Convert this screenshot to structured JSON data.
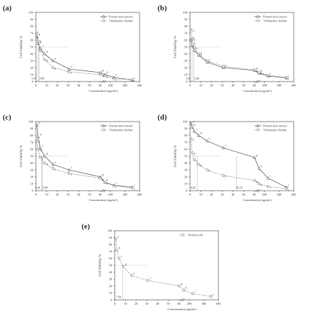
{
  "chart_data": [
    {
      "type": "line",
      "panel_label": "(a)",
      "ylabel": "Cell Viability %",
      "xlabel": "Concentration (µg/mL)",
      "xticks": [
        "0",
        "10",
        "20",
        "30",
        "40",
        "50",
        "60",
        "200",
        "400",
        "600"
      ],
      "yticks": [
        "0",
        "10",
        "20",
        "30",
        "40",
        "50",
        "60",
        "70",
        "80",
        "90",
        "100"
      ],
      "ylim": [
        0,
        100
      ],
      "ic50": [
        "1.93",
        "2.89"
      ],
      "series": [
        {
          "name": "Peanut skin extract",
          "marker": "triangle",
          "dash": false,
          "x": [
            1,
            2,
            4,
            8,
            16,
            31,
            62,
            125,
            250,
            500
          ],
          "y": [
            65,
            55,
            48,
            40,
            30,
            18,
            13,
            10,
            6,
            2
          ],
          "labels": [
            "a",
            "b",
            "c",
            "d",
            "e",
            "f",
            "g",
            "h",
            "i",
            "j"
          ]
        },
        {
          "name": "Vinblastine Sulfate",
          "marker": "circle",
          "dash": true,
          "x": [
            1,
            2,
            4,
            8,
            16,
            31,
            62,
            125,
            250,
            500
          ],
          "y": [
            70,
            58,
            45,
            32,
            20,
            14,
            10,
            8,
            4,
            3
          ],
          "labels": [
            "a",
            "b",
            "c",
            "d",
            "e",
            "f",
            "g",
            "h",
            "i",
            "j"
          ]
        }
      ]
    },
    {
      "type": "line",
      "panel_label": "(b)",
      "ylabel": "Cell Viability %",
      "xlabel": "Concentration (µg/mL)",
      "xticks": [
        "0",
        "10",
        "20",
        "30",
        "40",
        "50",
        "60",
        "200",
        "400",
        "600"
      ],
      "yticks": [
        "0",
        "10",
        "20",
        "30",
        "40",
        "50",
        "60",
        "70",
        "80",
        "90",
        "100"
      ],
      "ylim": [
        0,
        100
      ],
      "ic50": [
        "1.92",
        "3.48"
      ],
      "series": [
        {
          "name": "Peanut skin extract",
          "marker": "triangle",
          "dash": false,
          "x": [
            1,
            2,
            4,
            8,
            16,
            31,
            62,
            125,
            250,
            500
          ],
          "y": [
            60,
            52,
            45,
            38,
            28,
            20,
            16,
            12,
            8,
            5
          ],
          "labels": [
            "a",
            "b",
            "c",
            "d",
            "e",
            "f",
            "g",
            "h",
            "i",
            "j"
          ]
        },
        {
          "name": "Vinblastine Sulfate",
          "marker": "circle",
          "dash": true,
          "x": [
            1,
            2,
            4,
            8,
            16,
            31,
            62,
            125,
            250,
            500
          ],
          "y": [
            75,
            62,
            50,
            40,
            30,
            22,
            17,
            13,
            9,
            6
          ],
          "labels": [
            "a",
            "b",
            "c",
            "d",
            "e",
            "f",
            "g",
            "h",
            "i",
            "j"
          ]
        }
      ]
    },
    {
      "type": "line",
      "panel_label": "(c)",
      "ylabel": "Cell Viability %",
      "xlabel": "Concentration (µg/mL)",
      "xticks": [
        "0",
        "10",
        "20",
        "30",
        "40",
        "50",
        "60",
        "200",
        "400",
        "600"
      ],
      "yticks": [
        "0",
        "10",
        "20",
        "30",
        "40",
        "50",
        "60",
        "70",
        "80",
        "90",
        "100"
      ],
      "ylim": [
        0,
        100
      ],
      "ic50": [
        "5.28",
        "5.89"
      ],
      "series": [
        {
          "name": "Peanut skin extract",
          "marker": "triangle",
          "dash": false,
          "x": [
            1,
            2,
            4,
            8,
            16,
            31,
            62,
            125,
            250,
            500
          ],
          "y": [
            95,
            78,
            62,
            50,
            38,
            30,
            20,
            12,
            8,
            5
          ],
          "labels": [
            "a",
            "b",
            "c",
            "d",
            "e",
            "f",
            "g",
            "h",
            "i",
            "j"
          ]
        },
        {
          "name": "Vinblastine Sulfate",
          "marker": "circle",
          "dash": true,
          "x": [
            1,
            2,
            4,
            8,
            16,
            31,
            62,
            125,
            250,
            500
          ],
          "y": [
            72,
            60,
            48,
            40,
            32,
            25,
            18,
            12,
            7,
            4
          ],
          "labels": [
            "a",
            "b",
            "c",
            "d",
            "e",
            "f",
            "g",
            "h",
            "i",
            "j"
          ]
        }
      ]
    },
    {
      "type": "line",
      "panel_label": "(d)",
      "ylabel": "Cell Viability %",
      "xlabel": "Concentration (µg/mL)",
      "xticks": [
        "0",
        "10",
        "20",
        "30",
        "40",
        "50",
        "60",
        "200",
        "400",
        "600"
      ],
      "yticks": [
        "0",
        "10",
        "20",
        "30",
        "40",
        "50",
        "60",
        "70",
        "80",
        "90",
        "100"
      ],
      "ylim": [
        0,
        100
      ],
      "ic50": [
        "6.62",
        "43.33"
      ],
      "series": [
        {
          "name": "Peanut skin extract",
          "marker": "triangle",
          "dash": false,
          "x": [
            1,
            2,
            4,
            8,
            16,
            31,
            62,
            125,
            250,
            500
          ],
          "y": [
            97,
            92,
            86,
            80,
            72,
            62,
            48,
            32,
            18,
            5
          ],
          "labels": [
            "a",
            "b",
            "c",
            "d",
            "e",
            "f",
            "g",
            "h",
            "i",
            "j"
          ]
        },
        {
          "name": "Vinblastine Sulfate",
          "marker": "circle",
          "dash": true,
          "x": [
            1,
            2,
            4,
            8,
            16,
            31,
            62,
            125,
            250,
            500
          ],
          "y": [
            75,
            55,
            45,
            38,
            30,
            22,
            15,
            10,
            6,
            3
          ],
          "labels": [
            "a",
            "b",
            "c",
            "d",
            "e",
            "f",
            "g",
            "h",
            "i",
            "j"
          ]
        }
      ]
    },
    {
      "type": "line",
      "panel_label": "(e)",
      "ylabel": "Cell Viability %",
      "xlabel": "Concentration (µg/mL)",
      "xticks": [
        "0",
        "10",
        "20",
        "30",
        "40",
        "50",
        "60",
        "200",
        "400",
        "600"
      ],
      "yticks": [
        "0",
        "10",
        "20",
        "30",
        "40",
        "50",
        "60",
        "70",
        "80",
        "90",
        "100"
      ],
      "ylim": [
        0,
        100
      ],
      "ic50": [
        "7.30"
      ],
      "series": [
        {
          "name": "Normal cell",
          "marker": "circle",
          "dash": true,
          "x": [
            1,
            2,
            4,
            8,
            16,
            31,
            62,
            125,
            250,
            500
          ],
          "y": [
            88,
            72,
            60,
            48,
            35,
            28,
            20,
            14,
            9,
            5
          ],
          "labels": [
            "a",
            "b",
            "c",
            "d",
            "e",
            "f",
            "g",
            "h",
            "i",
            "j"
          ]
        }
      ]
    }
  ]
}
